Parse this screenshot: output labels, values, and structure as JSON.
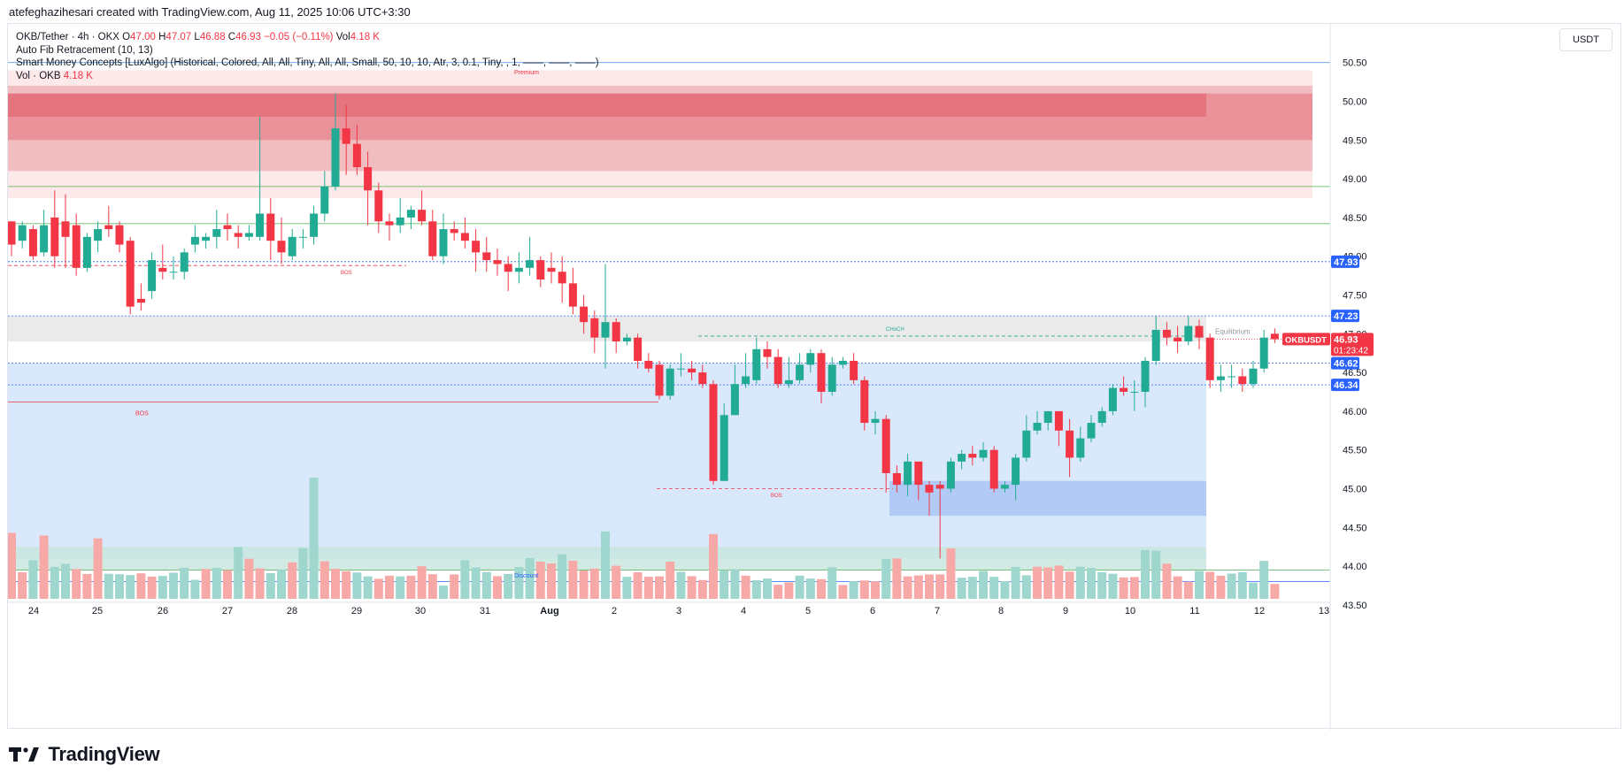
{
  "header": {
    "credit": "atefeghazihesari created with TradingView.com, Aug 11, 2025 10:06 UTC+3:30",
    "currency_button": "USDT"
  },
  "legend": {
    "symbol": "OKB/Tether · 4h · OKX",
    "open_label": "O",
    "open": "47.00",
    "high_label": "H",
    "high": "47.07",
    "low_label": "L",
    "low": "46.88",
    "close_label": "C",
    "close": "46.93",
    "change": "−0.05 (−0.11%)",
    "vol_label": "Vol",
    "vol": "4.18 K",
    "indicators": [
      "Auto Fib Retracement (10, 13)",
      "Smart Money Concepts [LuxAlgo] (Historical, Colored, All, All, Tiny, All, All, Small, 50, 10, 10, Atr, 3, 0.1, Tiny, , 1, ——, ——, ——)"
    ],
    "volume_indicator": "Vol · OKB",
    "volume_value": "4.18 K"
  },
  "footer": {
    "brand": "TradingView"
  },
  "colors": {
    "up": "#22ab94",
    "down": "#f23645",
    "vol_up": "#9fd6ce",
    "vol_down": "#f7a9a7",
    "premium_zone": "#f4c6c9",
    "discount_zone": "#d2e3fc",
    "equilibrium_zone": "#e6e6e6",
    "accent_blue": "#2962ff"
  },
  "chart_data": {
    "type": "candlestick",
    "y_ticks": [
      "43.50",
      "44.00",
      "44.50",
      "45.00",
      "45.50",
      "46.00",
      "46.50",
      "47.00",
      "47.50",
      "48.00",
      "48.50",
      "49.00",
      "49.50",
      "50.00",
      "50.50"
    ],
    "x_labels": [
      "24",
      "25",
      "26",
      "27",
      "28",
      "29",
      "30",
      "31",
      "Aug",
      "2",
      "3",
      "4",
      "5",
      "6",
      "7",
      "8",
      "9",
      "10",
      "11",
      "12",
      "13"
    ],
    "price_labels": [
      {
        "value": 47.93,
        "text": "47.93",
        "color": "#2962ff"
      },
      {
        "value": 47.23,
        "text": "47.23",
        "color": "#2962ff"
      },
      {
        "value": 46.62,
        "text": "46.62",
        "color": "#2962ff"
      },
      {
        "value": 46.34,
        "text": "46.34",
        "color": "#2962ff"
      }
    ],
    "current": {
      "symbol": "OKBUSDT",
      "price": 46.93,
      "price_text": "46.93",
      "countdown": "01:23:42"
    },
    "annotations": {
      "premium": "Premium",
      "discount": "Discount",
      "equilibrium": "Equilibrium",
      "choch": "CHoCH",
      "bos": "BOS"
    },
    "zones": [
      {
        "name": "premium-outer",
        "top": 50.4,
        "bottom": 48.75,
        "color": "#fde4e6"
      },
      {
        "name": "premium-mid",
        "top": 50.2,
        "bottom": 49.1,
        "color": "#f0b5b9"
      },
      {
        "name": "premium-inner",
        "top": 50.1,
        "bottom": 49.5,
        "color": "#e98a92"
      },
      {
        "name": "premium-core",
        "top": 50.1,
        "bottom": 49.8,
        "color": "#e3707a"
      },
      {
        "name": "equilibrium",
        "top": 47.23,
        "bottom": 46.9,
        "color": "#e6e6e6"
      },
      {
        "name": "discount",
        "top": 46.62,
        "bottom": 44.1,
        "color": "#d4e4fb"
      },
      {
        "name": "order-block",
        "top": 45.1,
        "bottom": 44.65,
        "color": "#a9c6f5"
      },
      {
        "name": "discount-low",
        "top": 44.25,
        "bottom": 43.95,
        "color": "#c6e6dd"
      }
    ],
    "candles": [
      [
        48.45,
        48.15,
        48.45,
        48.0
      ],
      [
        48.2,
        48.4,
        48.45,
        48.1
      ],
      [
        48.35,
        48.0,
        48.4,
        47.95
      ],
      [
        48.05,
        48.4,
        48.6,
        48.0
      ],
      [
        48.5,
        48.0,
        48.85,
        47.85
      ],
      [
        48.45,
        48.25,
        48.8,
        47.85
      ],
      [
        48.4,
        47.85,
        48.55,
        47.75
      ],
      [
        47.85,
        48.25,
        48.3,
        47.8
      ],
      [
        48.2,
        48.35,
        48.45,
        48.05
      ],
      [
        48.4,
        48.35,
        48.65,
        48.25
      ],
      [
        48.4,
        48.15,
        48.45,
        48.05
      ],
      [
        48.2,
        47.35,
        48.25,
        47.25
      ],
      [
        47.45,
        47.4,
        47.65,
        47.3
      ],
      [
        47.55,
        47.95,
        48.05,
        47.45
      ],
      [
        47.85,
        47.8,
        48.15,
        47.7
      ],
      [
        47.8,
        47.8,
        48.0,
        47.7
      ],
      [
        47.8,
        48.05,
        48.1,
        47.7
      ],
      [
        48.15,
        48.25,
        48.4,
        48.05
      ],
      [
        48.2,
        48.25,
        48.3,
        48.1
      ],
      [
        48.25,
        48.35,
        48.6,
        48.1
      ],
      [
        48.4,
        48.35,
        48.55,
        48.2
      ],
      [
        48.3,
        48.25,
        48.4,
        48.1
      ],
      [
        48.25,
        48.3,
        48.4,
        48.2
      ],
      [
        48.25,
        48.55,
        49.8,
        48.2
      ],
      [
        48.55,
        48.2,
        48.75,
        47.95
      ],
      [
        48.2,
        48.05,
        48.5,
        47.9
      ],
      [
        48.0,
        48.25,
        48.35,
        47.95
      ],
      [
        48.25,
        48.25,
        48.35,
        48.1
      ],
      [
        48.25,
        48.55,
        48.65,
        48.15
      ],
      [
        48.55,
        48.9,
        49.1,
        48.45
      ],
      [
        48.9,
        49.65,
        50.1,
        48.85
      ],
      [
        49.65,
        49.45,
        49.95,
        49.05
      ],
      [
        49.45,
        49.15,
        49.7,
        49.05
      ],
      [
        49.15,
        48.85,
        49.35,
        48.4
      ],
      [
        48.85,
        48.45,
        48.95,
        48.3
      ],
      [
        48.45,
        48.4,
        48.55,
        48.2
      ],
      [
        48.4,
        48.5,
        48.75,
        48.3
      ],
      [
        48.5,
        48.6,
        48.65,
        48.35
      ],
      [
        48.6,
        48.45,
        48.85,
        48.4
      ],
      [
        48.45,
        48.0,
        48.6,
        47.95
      ],
      [
        48.0,
        48.35,
        48.55,
        47.9
      ],
      [
        48.35,
        48.3,
        48.45,
        48.2
      ],
      [
        48.3,
        48.2,
        48.5,
        48.1
      ],
      [
        48.2,
        48.05,
        48.35,
        47.8
      ],
      [
        48.05,
        47.95,
        48.25,
        47.8
      ],
      [
        47.95,
        47.9,
        48.1,
        47.75
      ],
      [
        47.9,
        47.8,
        48.0,
        47.55
      ],
      [
        47.8,
        47.85,
        48.05,
        47.65
      ],
      [
        47.85,
        47.95,
        48.25,
        47.75
      ],
      [
        47.95,
        47.7,
        48.0,
        47.6
      ],
      [
        47.85,
        47.8,
        48.05,
        47.65
      ],
      [
        47.8,
        47.65,
        48.0,
        47.4
      ],
      [
        47.65,
        47.35,
        47.85,
        47.25
      ],
      [
        47.35,
        47.15,
        47.5,
        47.0
      ],
      [
        47.2,
        46.95,
        47.3,
        46.75
      ],
      [
        46.95,
        47.15,
        47.9,
        46.55
      ],
      [
        47.15,
        46.9,
        47.2,
        46.75
      ],
      [
        46.9,
        46.95,
        47.0,
        46.85
      ],
      [
        46.95,
        46.65,
        47.0,
        46.55
      ],
      [
        46.65,
        46.55,
        46.75,
        46.5
      ],
      [
        46.6,
        46.2,
        46.65,
        46.15
      ],
      [
        46.2,
        46.55,
        46.6,
        46.15
      ],
      [
        46.55,
        46.55,
        46.75,
        46.45
      ],
      [
        46.55,
        46.5,
        46.65,
        46.4
      ],
      [
        46.5,
        46.35,
        46.6,
        46.3
      ],
      [
        46.35,
        45.1,
        46.4,
        45.05
      ],
      [
        45.1,
        45.95,
        46.1,
        45.1
      ],
      [
        45.95,
        46.35,
        46.6,
        45.95
      ],
      [
        46.35,
        46.45,
        46.75,
        46.3
      ],
      [
        46.4,
        46.8,
        46.95,
        46.35
      ],
      [
        46.8,
        46.7,
        46.9,
        46.55
      ],
      [
        46.7,
        46.35,
        46.8,
        46.3
      ],
      [
        46.35,
        46.4,
        46.7,
        46.3
      ],
      [
        46.4,
        46.6,
        46.75,
        46.35
      ],
      [
        46.6,
        46.75,
        46.8,
        46.5
      ],
      [
        46.75,
        46.25,
        46.8,
        46.1
      ],
      [
        46.25,
        46.6,
        46.7,
        46.2
      ],
      [
        46.6,
        46.65,
        46.7,
        46.55
      ],
      [
        46.65,
        46.4,
        46.75,
        46.35
      ],
      [
        46.4,
        45.85,
        46.45,
        45.75
      ],
      [
        45.85,
        45.9,
        46.0,
        45.7
      ],
      [
        45.9,
        45.2,
        45.95,
        44.95
      ],
      [
        45.2,
        45.05,
        45.3,
        44.95
      ],
      [
        45.05,
        45.35,
        45.45,
        44.9
      ],
      [
        45.35,
        45.05,
        45.35,
        44.85
      ],
      [
        45.05,
        44.95,
        45.1,
        44.65
      ],
      [
        45.05,
        45.0,
        45.1,
        44.1
      ],
      [
        45.0,
        45.35,
        45.4,
        44.95
      ],
      [
        45.35,
        45.45,
        45.5,
        45.25
      ],
      [
        45.45,
        45.4,
        45.55,
        45.3
      ],
      [
        45.4,
        45.5,
        45.6,
        45.35
      ],
      [
        45.5,
        45.0,
        45.55,
        44.95
      ],
      [
        45.0,
        45.05,
        45.1,
        44.95
      ],
      [
        45.05,
        45.4,
        45.45,
        44.85
      ],
      [
        45.4,
        45.75,
        45.95,
        45.35
      ],
      [
        45.75,
        45.85,
        46.0,
        45.7
      ],
      [
        45.85,
        46.0,
        46.0,
        45.75
      ],
      [
        46.0,
        45.75,
        46.0,
        45.55
      ],
      [
        45.75,
        45.4,
        45.9,
        45.15
      ],
      [
        45.4,
        45.65,
        45.8,
        45.35
      ],
      [
        45.65,
        45.85,
        45.95,
        45.6
      ],
      [
        45.85,
        46.0,
        46.05,
        45.8
      ],
      [
        46.0,
        46.3,
        46.35,
        45.95
      ],
      [
        46.3,
        46.25,
        46.45,
        46.2
      ],
      [
        46.25,
        46.25,
        46.4,
        46.0
      ],
      [
        46.25,
        46.65,
        46.7,
        46.05
      ],
      [
        46.65,
        47.05,
        47.23,
        46.6
      ],
      [
        47.05,
        46.95,
        47.15,
        46.85
      ],
      [
        46.95,
        46.9,
        47.1,
        46.75
      ],
      [
        46.9,
        47.1,
        47.23,
        46.85
      ],
      [
        47.1,
        46.95,
        47.18,
        46.8
      ],
      [
        46.95,
        46.4,
        47.0,
        46.3
      ],
      [
        46.4,
        46.45,
        46.6,
        46.25
      ],
      [
        46.45,
        46.45,
        46.6,
        46.3
      ],
      [
        46.45,
        46.35,
        46.55,
        46.25
      ],
      [
        46.35,
        46.55,
        46.65,
        46.3
      ],
      [
        46.55,
        46.95,
        47.05,
        46.5
      ],
      [
        47.0,
        46.93,
        47.07,
        46.88
      ]
    ],
    "volumes": [
      [
        3.06,
        "down"
      ],
      [
        1.23,
        "down"
      ],
      [
        1.79,
        "up"
      ],
      [
        2.93,
        "down"
      ],
      [
        1.48,
        "up"
      ],
      [
        1.62,
        "up"
      ],
      [
        1.38,
        "down"
      ],
      [
        1.15,
        "down"
      ],
      [
        2.8,
        "down"
      ],
      [
        1.16,
        "up"
      ],
      [
        1.14,
        "up"
      ],
      [
        1.1,
        "up"
      ],
      [
        1.18,
        "down"
      ],
      [
        1.03,
        "down"
      ],
      [
        1.06,
        "up"
      ],
      [
        1.21,
        "up"
      ],
      [
        1.44,
        "up"
      ],
      [
        0.88,
        "up"
      ],
      [
        1.38,
        "down"
      ],
      [
        1.43,
        "up"
      ],
      [
        1.33,
        "down"
      ],
      [
        2.4,
        "up"
      ],
      [
        1.86,
        "down"
      ],
      [
        1.41,
        "down"
      ],
      [
        1.19,
        "up"
      ],
      [
        1.36,
        "up"
      ],
      [
        1.69,
        "down"
      ],
      [
        2.35,
        "up"
      ],
      [
        5.61,
        "up"
      ],
      [
        1.74,
        "down"
      ],
      [
        1.39,
        "down"
      ],
      [
        1.28,
        "down"
      ],
      [
        1.22,
        "up"
      ],
      [
        1.04,
        "up"
      ],
      [
        0.93,
        "down"
      ],
      [
        1.07,
        "down"
      ],
      [
        1.04,
        "up"
      ],
      [
        1.07,
        "down"
      ],
      [
        1.51,
        "down"
      ],
      [
        1.14,
        "down"
      ],
      [
        0.61,
        "up"
      ],
      [
        1.13,
        "down"
      ],
      [
        1.79,
        "up"
      ],
      [
        1.45,
        "up"
      ],
      [
        1.24,
        "up"
      ],
      [
        1.05,
        "down"
      ],
      [
        1.15,
        "up"
      ],
      [
        1.47,
        "up"
      ],
      [
        1.89,
        "up"
      ],
      [
        1.72,
        "down"
      ],
      [
        1.64,
        "down"
      ],
      [
        2.06,
        "up"
      ],
      [
        1.76,
        "down"
      ],
      [
        1.31,
        "down"
      ],
      [
        1.4,
        "down"
      ],
      [
        3.12,
        "up"
      ],
      [
        1.53,
        "down"
      ],
      [
        1.02,
        "up"
      ],
      [
        1.23,
        "down"
      ],
      [
        1.02,
        "down"
      ],
      [
        1.04,
        "down"
      ],
      [
        1.72,
        "down"
      ],
      [
        1.25,
        "up"
      ],
      [
        1.05,
        "down"
      ],
      [
        0.87,
        "down"
      ],
      [
        3.0,
        "down"
      ],
      [
        1.33,
        "up"
      ],
      [
        1.37,
        "up"
      ],
      [
        1.07,
        "down"
      ],
      [
        0.86,
        "up"
      ],
      [
        0.94,
        "up"
      ],
      [
        0.65,
        "down"
      ],
      [
        0.76,
        "down"
      ],
      [
        1.07,
        "up"
      ],
      [
        0.94,
        "up"
      ],
      [
        0.91,
        "down"
      ],
      [
        1.46,
        "up"
      ],
      [
        0.64,
        "down"
      ],
      [
        0.81,
        "up"
      ],
      [
        0.85,
        "down"
      ],
      [
        0.81,
        "down"
      ],
      [
        1.85,
        "up"
      ],
      [
        1.87,
        "down"
      ],
      [
        1.04,
        "down"
      ],
      [
        1.08,
        "down"
      ],
      [
        1.13,
        "down"
      ],
      [
        1.13,
        "down"
      ],
      [
        2.34,
        "down"
      ],
      [
        0.98,
        "up"
      ],
      [
        1.02,
        "up"
      ],
      [
        1.29,
        "up"
      ],
      [
        1.02,
        "up"
      ],
      [
        0.82,
        "up"
      ],
      [
        1.48,
        "up"
      ],
      [
        1.09,
        "up"
      ],
      [
        1.49,
        "down"
      ],
      [
        1.46,
        "down"
      ],
      [
        1.54,
        "down"
      ],
      [
        1.26,
        "down"
      ],
      [
        1.49,
        "up"
      ],
      [
        1.43,
        "up"
      ],
      [
        1.23,
        "up"
      ],
      [
        1.16,
        "up"
      ],
      [
        0.99,
        "down"
      ],
      [
        1.01,
        "down"
      ],
      [
        2.26,
        "up"
      ],
      [
        2.23,
        "up"
      ],
      [
        1.63,
        "down"
      ],
      [
        1.04,
        "down"
      ],
      [
        0.79,
        "down"
      ],
      [
        1.29,
        "up"
      ],
      [
        1.25,
        "down"
      ],
      [
        1.07,
        "down"
      ],
      [
        1.17,
        "up"
      ],
      [
        1.23,
        "up"
      ],
      [
        0.75,
        "up"
      ],
      [
        1.76,
        "up"
      ],
      [
        0.69,
        "down"
      ]
    ]
  }
}
